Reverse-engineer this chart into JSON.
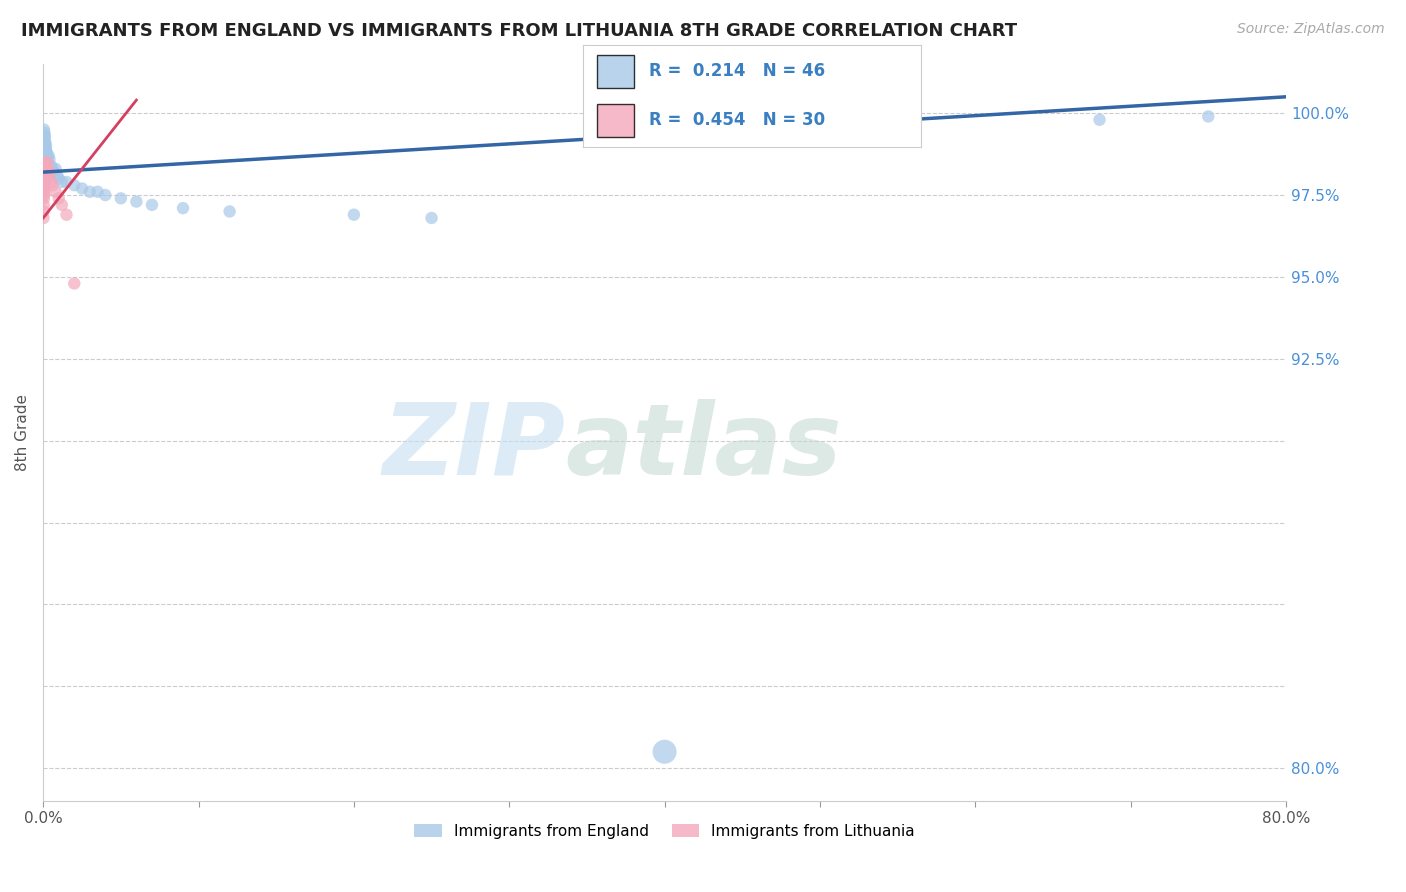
{
  "title": "IMMIGRANTS FROM ENGLAND VS IMMIGRANTS FROM LITHUANIA 8TH GRADE CORRELATION CHART",
  "source": "Source: ZipAtlas.com",
  "ylabel": "8th Grade",
  "england_R": 0.214,
  "england_N": 46,
  "lithuania_R": 0.454,
  "lithuania_N": 30,
  "england_color": "#a8c8e8",
  "lithuania_color": "#f4a8bc",
  "england_line_color": "#3465a4",
  "lithuania_line_color": "#d44060",
  "xlim": [
    0.0,
    80.0
  ],
  "ylim": [
    79.0,
    101.5
  ],
  "ytick_vals": [
    80.0,
    82.5,
    85.0,
    87.5,
    90.0,
    92.5,
    95.0,
    97.5,
    100.0
  ],
  "ytick_labels_right": [
    "80.0%",
    "",
    "",
    "",
    "",
    "92.5%",
    "95.0%",
    "97.5%",
    "100.0%"
  ],
  "grid_color": "#cccccc",
  "eng_line_x0": 0.0,
  "eng_line_y0": 98.2,
  "eng_line_x1": 80.0,
  "eng_line_y1": 100.5,
  "lit_line_x0": 0.0,
  "lit_line_y0": 96.8,
  "lit_line_x1": 6.0,
  "lit_line_y1": 100.4,
  "england_x": [
    0.05,
    0.07,
    0.08,
    0.09,
    0.1,
    0.11,
    0.12,
    0.13,
    0.14,
    0.15,
    0.16,
    0.17,
    0.18,
    0.19,
    0.2,
    0.21,
    0.22,
    0.23,
    0.24,
    0.25,
    0.3,
    0.35,
    0.4,
    0.5,
    0.6,
    0.7,
    0.8,
    0.9,
    1.0,
    1.2,
    1.5,
    2.0,
    2.5,
    3.0,
    3.5,
    4.0,
    5.0,
    6.0,
    7.0,
    9.0,
    12.0,
    20.0,
    25.0,
    40.0,
    68.0,
    75.0
  ],
  "england_y": [
    99.5,
    99.3,
    99.4,
    99.2,
    99.3,
    99.1,
    99.0,
    98.9,
    99.1,
    98.8,
    98.7,
    98.9,
    99.0,
    98.8,
    98.6,
    98.7,
    98.8,
    98.6,
    98.7,
    98.5,
    98.5,
    98.7,
    98.6,
    98.4,
    98.3,
    98.2,
    98.3,
    98.1,
    98.0,
    97.9,
    97.9,
    97.8,
    97.7,
    97.6,
    97.6,
    97.5,
    97.4,
    97.3,
    97.2,
    97.1,
    97.0,
    96.9,
    96.8,
    80.5,
    99.8,
    99.9
  ],
  "england_sizes": [
    80,
    80,
    80,
    80,
    80,
    80,
    80,
    80,
    80,
    80,
    80,
    80,
    80,
    80,
    80,
    80,
    80,
    80,
    80,
    80,
    80,
    80,
    80,
    80,
    80,
    80,
    80,
    80,
    80,
    80,
    80,
    80,
    80,
    80,
    80,
    80,
    80,
    80,
    80,
    80,
    80,
    80,
    80,
    300,
    80,
    80
  ],
  "lithuania_x": [
    0.02,
    0.03,
    0.04,
    0.05,
    0.06,
    0.07,
    0.08,
    0.09,
    0.1,
    0.11,
    0.12,
    0.13,
    0.14,
    0.15,
    0.16,
    0.17,
    0.18,
    0.2,
    0.22,
    0.25,
    0.3,
    0.35,
    0.4,
    0.5,
    0.6,
    0.8,
    1.0,
    1.2,
    1.5,
    2.0
  ],
  "lithuania_y": [
    96.8,
    97.0,
    97.2,
    97.4,
    97.5,
    97.6,
    97.7,
    97.8,
    97.9,
    98.0,
    98.1,
    98.2,
    98.2,
    98.3,
    98.4,
    98.5,
    98.4,
    98.3,
    98.5,
    98.4,
    98.3,
    98.2,
    98.1,
    97.9,
    97.8,
    97.6,
    97.4,
    97.2,
    96.9,
    94.8
  ]
}
